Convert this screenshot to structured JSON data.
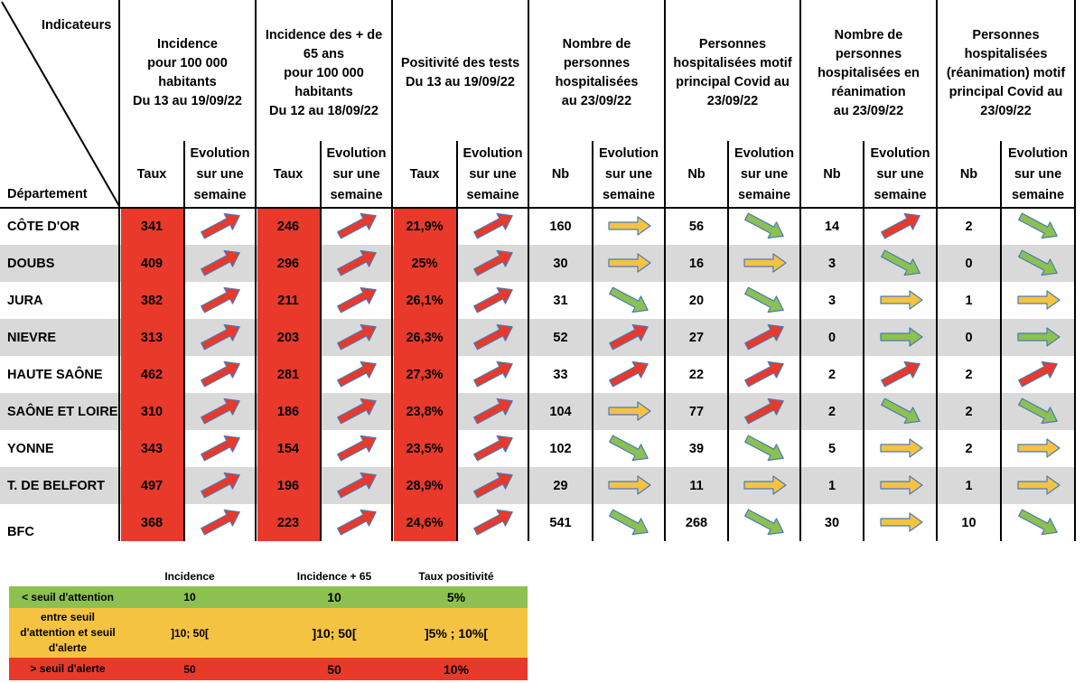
{
  "header": {
    "indicateurs_label": "Indicateurs",
    "departement_label": "Département",
    "groups": [
      {
        "title": "Incidence\npour 100 000\nhabitants\nDu 13 au 19/09/22",
        "col1": "Taux",
        "col2": "Evolution\nsur une\nsemaine"
      },
      {
        "title": "Incidence des + de\n65 ans\npour 100 000\nhabitants\nDu 12 au 18/09/22",
        "col1": "Taux",
        "col2": "Evolution\nsur une\nsemaine"
      },
      {
        "title": "Positivité des tests\nDu 13 au 19/09/22",
        "col1": "Taux",
        "col2": "Evolution\nsur une\nsemaine"
      },
      {
        "title": "Nombre de\npersonnes\nhospitalisées\nau 23/09/22",
        "col1": "Nb",
        "col2": "Evolution\nsur une\nsemaine"
      },
      {
        "title": "Personnes\nhospitalisées motif\nprincipal Covid au\n23/09/22",
        "col1": "Nb",
        "col2": "Evolution\nsur une\nsemaine"
      },
      {
        "title": "Nombre de\npersonnes\nhospitalisées en\nréanimation\nau 23/09/22",
        "col1": "Nb",
        "col2": "Evolution\nsur une\nsemaine"
      },
      {
        "title": "Personnes\nhospitalisées\n(réanimation) motif\nprincipal Covid au\n23/09/22",
        "col1": "Nb",
        "col2": "Evolution\nsur une\nsemaine"
      }
    ]
  },
  "arrow_colors": {
    "red": "#e8392a",
    "yellow": "#f5c342",
    "green": "#8cc152",
    "outline": "#4a7ab8"
  },
  "rows": [
    {
      "dept": "CÔTE D'OR",
      "values": [
        "341",
        "246",
        "21,9%",
        "160",
        "56",
        "14",
        "2"
      ],
      "arrows": [
        "up-red",
        "up-red",
        "up-red",
        "flat-yellow",
        "down-green",
        "up-red",
        "down-green"
      ]
    },
    {
      "dept": "DOUBS",
      "values": [
        "409",
        "296",
        "25%",
        "30",
        "16",
        "3",
        "0"
      ],
      "arrows": [
        "up-red",
        "up-red",
        "up-red",
        "flat-yellow",
        "flat-yellow",
        "down-green",
        "down-green"
      ]
    },
    {
      "dept": "JURA",
      "values": [
        "382",
        "211",
        "26,1%",
        "31",
        "20",
        "3",
        "1"
      ],
      "arrows": [
        "up-red",
        "up-red",
        "up-red",
        "down-green",
        "down-green",
        "flat-yellow",
        "flat-yellow"
      ]
    },
    {
      "dept": "NIEVRE",
      "values": [
        "313",
        "203",
        "26,3%",
        "52",
        "27",
        "0",
        "0"
      ],
      "arrows": [
        "up-red",
        "up-red",
        "up-red",
        "up-red",
        "up-red",
        "flat-green",
        "flat-green"
      ]
    },
    {
      "dept": "HAUTE SAÔNE",
      "values": [
        "462",
        "281",
        "27,3%",
        "33",
        "22",
        "2",
        "2"
      ],
      "arrows": [
        "up-red",
        "up-red",
        "up-red",
        "up-red",
        "up-red",
        "up-red",
        "up-red"
      ]
    },
    {
      "dept": "SAÔNE ET LOIRE",
      "values": [
        "310",
        "186",
        "23,8%",
        "104",
        "77",
        "2",
        "2"
      ],
      "arrows": [
        "up-red",
        "up-red",
        "up-red",
        "flat-yellow",
        "up-red",
        "down-green",
        "down-green"
      ]
    },
    {
      "dept": "YONNE",
      "values": [
        "343",
        "154",
        "23,5%",
        "102",
        "39",
        "5",
        "2"
      ],
      "arrows": [
        "up-red",
        "up-red",
        "up-red",
        "down-green",
        "down-green",
        "flat-yellow",
        "flat-yellow"
      ]
    },
    {
      "dept": "T. DE BELFORT",
      "values": [
        "497",
        "196",
        "28,9%",
        "29",
        "11",
        "1",
        "1"
      ],
      "arrows": [
        "up-red",
        "up-red",
        "up-red",
        "flat-yellow",
        "flat-yellow",
        "flat-yellow",
        "flat-yellow"
      ]
    },
    {
      "dept": "BFC",
      "values": [
        "368",
        "223",
        "24,6%",
        "541",
        "268",
        "30",
        "10"
      ],
      "arrows": [
        "up-red",
        "up-red",
        "up-red",
        "down-green",
        "down-green",
        "flat-yellow",
        "down-green"
      ]
    }
  ],
  "legend": {
    "headers": [
      "Incidence",
      "Incidence + 65",
      "Taux positivité"
    ],
    "rows": [
      {
        "label": "< seuil d'attention",
        "values": [
          "10",
          "10",
          "5%"
        ],
        "color": "#8cc152"
      },
      {
        "label": "entre seuil\nd'attention et seuil\nd'alerte",
        "values": [
          "]10; 50[",
          "]10; 50[",
          "]5% ; 10%["
        ],
        "color": "#f5c342"
      },
      {
        "label": "> seuil d'alerte",
        "values": [
          "50",
          "50",
          "10%"
        ],
        "color": "#e8392a"
      }
    ]
  }
}
